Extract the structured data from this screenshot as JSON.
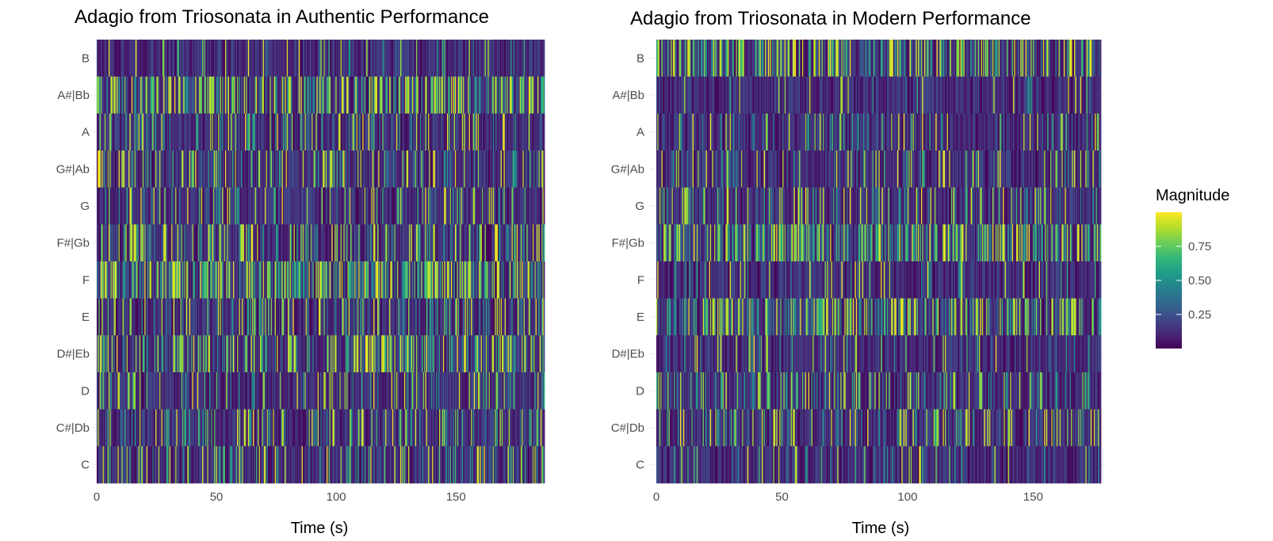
{
  "chart_data": [
    {
      "type": "heatmap",
      "title": "Adagio from Triosonata in Authentic Performance",
      "xlabel": "Time (s)",
      "ylabel": "",
      "x_ticks": [
        "0",
        "50",
        "100",
        "150"
      ],
      "x_tick_values": [
        0,
        50,
        100,
        150
      ],
      "xlim": [
        0,
        187
      ],
      "y_categories": [
        "B",
        "A#|Bb",
        "A",
        "G#|Ab",
        "G",
        "F#|Gb",
        "F",
        "E",
        "D#|Eb",
        "D",
        "C#|Db",
        "C"
      ],
      "time_frames": 450,
      "row_density": [
        0.1,
        0.62,
        0.22,
        0.28,
        0.18,
        0.4,
        0.62,
        0.3,
        0.44,
        0.24,
        0.3,
        0.3
      ],
      "seed": 17
    },
    {
      "type": "heatmap",
      "title": "Adagio from Triosonata in Modern Performance",
      "xlabel": "Time (s)",
      "ylabel": "",
      "x_ticks": [
        "0",
        "50",
        "100",
        "150"
      ],
      "x_tick_values": [
        0,
        50,
        100,
        150
      ],
      "xlim": [
        0,
        177
      ],
      "y_categories": [
        "B",
        "A#|Bb",
        "A",
        "G#|Ab",
        "G",
        "F#|Gb",
        "F",
        "E",
        "D#|Eb",
        "D",
        "C#|Db",
        "C"
      ],
      "time_frames": 430,
      "row_density": [
        0.5,
        0.1,
        0.22,
        0.22,
        0.26,
        0.55,
        0.14,
        0.55,
        0.14,
        0.3,
        0.28,
        0.12
      ],
      "seed": 91
    }
  ],
  "legend": {
    "title": "Magnitude",
    "ticks": [
      "0.75",
      "0.50",
      "0.25"
    ],
    "tick_values": [
      0.75,
      0.5,
      0.25
    ],
    "range": [
      0,
      1
    ],
    "colors": [
      "#440154",
      "#482878",
      "#3e4989",
      "#31688e",
      "#26828e",
      "#1f9e89",
      "#35b779",
      "#6ece58",
      "#b5de2b",
      "#fde725"
    ]
  }
}
